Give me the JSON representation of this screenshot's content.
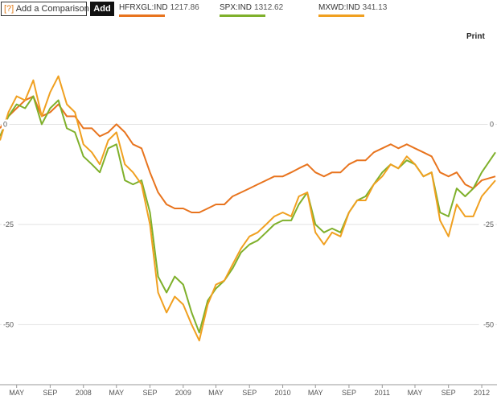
{
  "toolbar": {
    "compare_icon": "[?]",
    "compare_placeholder": "Add a Comparison",
    "add_label": "Add",
    "print_label": "Print"
  },
  "legend": [
    {
      "ticker": "HFRXGL:IND",
      "value": "1217.86",
      "color": "#e8741e"
    },
    {
      "ticker": "SPX:IND",
      "value": "1312.62",
      "color": "#7fb02b"
    },
    {
      "ticker": "MXWD:IND",
      "value": "341.13",
      "color": "#f0a020"
    }
  ],
  "chart_data": {
    "type": "line",
    "y_unit": "percent change",
    "ylim": [
      -65,
      25
    ],
    "yticks": [
      0,
      -25,
      -50
    ],
    "ytick_labels": [
      "0",
      "-25",
      "-50"
    ],
    "x_range": [
      "2007-03-01",
      "2012-02-20"
    ],
    "xticks": [
      {
        "date": "2007-05-01",
        "label": "MAY"
      },
      {
        "date": "2007-09-01",
        "label": "SEP"
      },
      {
        "date": "2008-01-01",
        "label": "2008"
      },
      {
        "date": "2008-05-01",
        "label": "MAY"
      },
      {
        "date": "2008-09-01",
        "label": "SEP"
      },
      {
        "date": "2009-01-01",
        "label": "2009"
      },
      {
        "date": "2009-05-01",
        "label": "MAY"
      },
      {
        "date": "2009-09-01",
        "label": "SEP"
      },
      {
        "date": "2010-01-01",
        "label": "2010"
      },
      {
        "date": "2010-05-01",
        "label": "MAY"
      },
      {
        "date": "2010-09-01",
        "label": "SEP"
      },
      {
        "date": "2011-01-01",
        "label": "2011"
      },
      {
        "date": "2011-05-01",
        "label": "MAY"
      },
      {
        "date": "2011-09-01",
        "label": "SEP"
      },
      {
        "date": "2012-01-01",
        "label": "2012"
      }
    ],
    "grid": "horizontal",
    "series": [
      {
        "name": "HFRXGL:IND",
        "color": "#e8741e",
        "points": [
          [
            "2007-03-01",
            -1
          ],
          [
            "2007-04-01",
            2
          ],
          [
            "2007-05-01",
            4
          ],
          [
            "2007-06-01",
            6
          ],
          [
            "2007-07-01",
            7
          ],
          [
            "2007-08-01",
            2
          ],
          [
            "2007-09-01",
            3
          ],
          [
            "2007-10-01",
            5
          ],
          [
            "2007-11-01",
            2
          ],
          [
            "2007-12-01",
            2
          ],
          [
            "2008-01-01",
            -1
          ],
          [
            "2008-02-01",
            -1
          ],
          [
            "2008-03-01",
            -3
          ],
          [
            "2008-04-01",
            -2
          ],
          [
            "2008-05-01",
            0
          ],
          [
            "2008-06-01",
            -2
          ],
          [
            "2008-07-01",
            -5
          ],
          [
            "2008-08-01",
            -6
          ],
          [
            "2008-09-01",
            -12
          ],
          [
            "2008-10-01",
            -17
          ],
          [
            "2008-11-01",
            -20
          ],
          [
            "2008-12-01",
            -21
          ],
          [
            "2009-01-01",
            -21
          ],
          [
            "2009-02-01",
            -22
          ],
          [
            "2009-03-01",
            -22
          ],
          [
            "2009-04-01",
            -21
          ],
          [
            "2009-05-01",
            -20
          ],
          [
            "2009-06-01",
            -20
          ],
          [
            "2009-07-01",
            -18
          ],
          [
            "2009-08-01",
            -17
          ],
          [
            "2009-09-01",
            -16
          ],
          [
            "2009-10-01",
            -15
          ],
          [
            "2009-11-01",
            -14
          ],
          [
            "2009-12-01",
            -13
          ],
          [
            "2010-01-01",
            -13
          ],
          [
            "2010-02-01",
            -12
          ],
          [
            "2010-03-01",
            -11
          ],
          [
            "2010-04-01",
            -10
          ],
          [
            "2010-05-01",
            -12
          ],
          [
            "2010-06-01",
            -13
          ],
          [
            "2010-07-01",
            -12
          ],
          [
            "2010-08-01",
            -12
          ],
          [
            "2010-09-01",
            -10
          ],
          [
            "2010-10-01",
            -9
          ],
          [
            "2010-11-01",
            -9
          ],
          [
            "2010-12-01",
            -7
          ],
          [
            "2011-01-01",
            -6
          ],
          [
            "2011-02-01",
            -5
          ],
          [
            "2011-03-01",
            -6
          ],
          [
            "2011-04-01",
            -5
          ],
          [
            "2011-05-01",
            -6
          ],
          [
            "2011-06-01",
            -7
          ],
          [
            "2011-07-01",
            -8
          ],
          [
            "2011-08-01",
            -12
          ],
          [
            "2011-09-01",
            -13
          ],
          [
            "2011-10-01",
            -12
          ],
          [
            "2011-11-01",
            -15
          ],
          [
            "2011-12-01",
            -16
          ],
          [
            "2012-01-01",
            -14
          ],
          [
            "2012-02-20",
            -13
          ]
        ]
      },
      {
        "name": "SPX:IND",
        "color": "#7fb02b",
        "points": [
          [
            "2007-03-01",
            -3
          ],
          [
            "2007-04-01",
            2
          ],
          [
            "2007-05-01",
            5
          ],
          [
            "2007-06-01",
            4
          ],
          [
            "2007-07-01",
            7
          ],
          [
            "2007-08-01",
            0
          ],
          [
            "2007-09-01",
            4
          ],
          [
            "2007-10-01",
            6
          ],
          [
            "2007-11-01",
            -1
          ],
          [
            "2007-12-01",
            -2
          ],
          [
            "2008-01-01",
            -8
          ],
          [
            "2008-02-01",
            -10
          ],
          [
            "2008-03-01",
            -12
          ],
          [
            "2008-04-01",
            -6
          ],
          [
            "2008-05-01",
            -5
          ],
          [
            "2008-06-01",
            -14
          ],
          [
            "2008-07-01",
            -15
          ],
          [
            "2008-08-01",
            -14
          ],
          [
            "2008-09-01",
            -22
          ],
          [
            "2008-10-01",
            -38
          ],
          [
            "2008-11-01",
            -42
          ],
          [
            "2008-12-01",
            -38
          ],
          [
            "2009-01-01",
            -40
          ],
          [
            "2009-02-01",
            -47
          ],
          [
            "2009-03-01",
            -52
          ],
          [
            "2009-04-01",
            -44
          ],
          [
            "2009-05-01",
            -41
          ],
          [
            "2009-06-01",
            -39
          ],
          [
            "2009-07-01",
            -36
          ],
          [
            "2009-08-01",
            -32
          ],
          [
            "2009-09-01",
            -30
          ],
          [
            "2009-10-01",
            -29
          ],
          [
            "2009-11-01",
            -27
          ],
          [
            "2009-12-01",
            -25
          ],
          [
            "2010-01-01",
            -24
          ],
          [
            "2010-02-01",
            -24
          ],
          [
            "2010-03-01",
            -20
          ],
          [
            "2010-04-01",
            -17
          ],
          [
            "2010-05-01",
            -25
          ],
          [
            "2010-06-01",
            -27
          ],
          [
            "2010-07-01",
            -26
          ],
          [
            "2010-08-01",
            -27
          ],
          [
            "2010-09-01",
            -22
          ],
          [
            "2010-10-01",
            -19
          ],
          [
            "2010-11-01",
            -18
          ],
          [
            "2010-12-01",
            -15
          ],
          [
            "2011-01-01",
            -12
          ],
          [
            "2011-02-01",
            -10
          ],
          [
            "2011-03-01",
            -11
          ],
          [
            "2011-04-01",
            -9
          ],
          [
            "2011-05-01",
            -10
          ],
          [
            "2011-06-01",
            -13
          ],
          [
            "2011-07-01",
            -12
          ],
          [
            "2011-08-01",
            -22
          ],
          [
            "2011-09-01",
            -23
          ],
          [
            "2011-10-01",
            -16
          ],
          [
            "2011-11-01",
            -18
          ],
          [
            "2011-12-01",
            -16
          ],
          [
            "2012-01-01",
            -12
          ],
          [
            "2012-02-20",
            -7
          ]
        ]
      },
      {
        "name": "MXWD:IND",
        "color": "#f0a020",
        "points": [
          [
            "2007-03-01",
            -4
          ],
          [
            "2007-04-01",
            3
          ],
          [
            "2007-05-01",
            7
          ],
          [
            "2007-06-01",
            6
          ],
          [
            "2007-07-01",
            11
          ],
          [
            "2007-08-01",
            2
          ],
          [
            "2007-09-01",
            8
          ],
          [
            "2007-10-01",
            12
          ],
          [
            "2007-11-01",
            5
          ],
          [
            "2007-12-01",
            3
          ],
          [
            "2008-01-01",
            -5
          ],
          [
            "2008-02-01",
            -7
          ],
          [
            "2008-03-01",
            -10
          ],
          [
            "2008-04-01",
            -4
          ],
          [
            "2008-05-01",
            -2
          ],
          [
            "2008-06-01",
            -10
          ],
          [
            "2008-07-01",
            -12
          ],
          [
            "2008-08-01",
            -15
          ],
          [
            "2008-09-01",
            -25
          ],
          [
            "2008-10-01",
            -42
          ],
          [
            "2008-11-01",
            -47
          ],
          [
            "2008-12-01",
            -43
          ],
          [
            "2009-01-01",
            -45
          ],
          [
            "2009-02-01",
            -50
          ],
          [
            "2009-03-01",
            -54
          ],
          [
            "2009-04-01",
            -45
          ],
          [
            "2009-05-01",
            -40
          ],
          [
            "2009-06-01",
            -39
          ],
          [
            "2009-07-01",
            -35
          ],
          [
            "2009-08-01",
            -31
          ],
          [
            "2009-09-01",
            -28
          ],
          [
            "2009-10-01",
            -27
          ],
          [
            "2009-11-01",
            -25
          ],
          [
            "2009-12-01",
            -23
          ],
          [
            "2010-01-01",
            -22
          ],
          [
            "2010-02-01",
            -23
          ],
          [
            "2010-03-01",
            -18
          ],
          [
            "2010-04-01",
            -17
          ],
          [
            "2010-05-01",
            -27
          ],
          [
            "2010-06-01",
            -30
          ],
          [
            "2010-07-01",
            -27
          ],
          [
            "2010-08-01",
            -28
          ],
          [
            "2010-09-01",
            -22
          ],
          [
            "2010-10-01",
            -19
          ],
          [
            "2010-11-01",
            -19
          ],
          [
            "2010-12-01",
            -15
          ],
          [
            "2011-01-01",
            -13
          ],
          [
            "2011-02-01",
            -10
          ],
          [
            "2011-03-01",
            -11
          ],
          [
            "2011-04-01",
            -8
          ],
          [
            "2011-05-01",
            -10
          ],
          [
            "2011-06-01",
            -13
          ],
          [
            "2011-07-01",
            -12
          ],
          [
            "2011-08-01",
            -24
          ],
          [
            "2011-09-01",
            -28
          ],
          [
            "2011-10-01",
            -20
          ],
          [
            "2011-11-01",
            -23
          ],
          [
            "2011-12-01",
            -23
          ],
          [
            "2012-01-01",
            -18
          ],
          [
            "2012-02-20",
            -14
          ]
        ]
      }
    ]
  }
}
